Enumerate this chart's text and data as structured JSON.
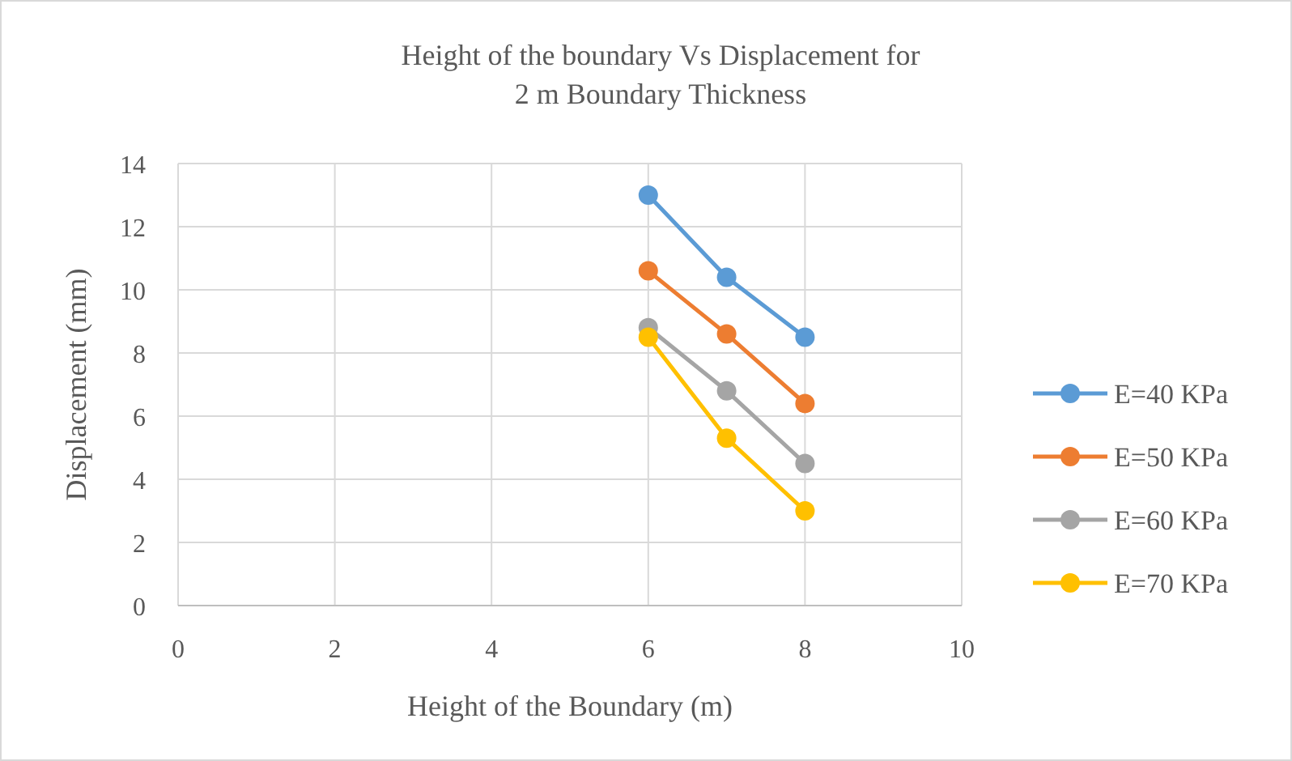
{
  "chart_data": {
    "type": "line",
    "title": "Height of the boundary Vs Displacement for 2 m Boundary Thickness",
    "xlabel": "Height of the Boundary (m)",
    "ylabel": "Displacement (mm)",
    "x": [
      6,
      7,
      8
    ],
    "series": [
      {
        "name": "E=40 KPa",
        "color": "#5b9bd5",
        "values": [
          13,
          10.4,
          8.5
        ]
      },
      {
        "name": "E=50 KPa",
        "color": "#ed7d31",
        "values": [
          10.6,
          8.6,
          6.4
        ]
      },
      {
        "name": "E=60 KPa",
        "color": "#a5a5a5",
        "values": [
          8.8,
          6.8,
          4.5
        ]
      },
      {
        "name": "E=70 KPa",
        "color": "#ffc000",
        "values": [
          8.5,
          5.3,
          3
        ]
      }
    ],
    "xlim": [
      0,
      10
    ],
    "xticks": [
      0,
      2,
      4,
      6,
      8,
      10
    ],
    "ylim": [
      0,
      14
    ],
    "yticks": [
      0,
      2,
      4,
      6,
      8,
      10,
      12,
      14
    ],
    "grid": true,
    "legend": "right",
    "marker": "circle",
    "line_style": "solid"
  }
}
